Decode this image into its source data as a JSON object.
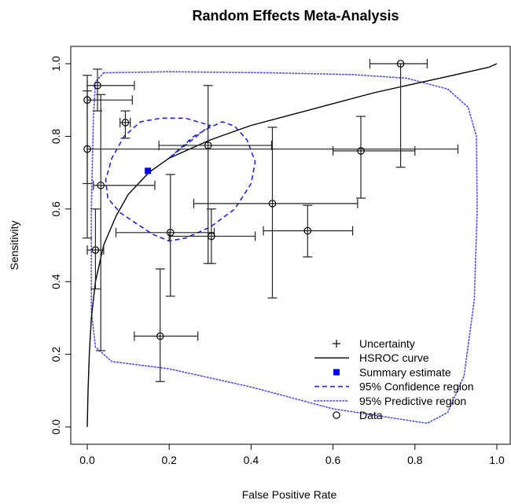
{
  "chart_data": {
    "type": "scatter",
    "title": "Random Effects Meta-Analysis",
    "xlabel": "False Positive Rate",
    "ylabel": "Sensitivity",
    "xlim": [
      0,
      1
    ],
    "ylim": [
      0,
      1
    ],
    "xticks": [
      "0.0",
      "0.2",
      "0.4",
      "0.6",
      "0.8",
      "1.0"
    ],
    "yticks": [
      "0.0",
      "0.2",
      "0.4",
      "0.6",
      "0.8",
      "1.0"
    ],
    "legend_position": "bottom-right",
    "colors": {
      "data": "#000000",
      "hsroc": "#000000",
      "summary": "#0000ff",
      "confidence": "#2222ee",
      "predictive": "#4a4aff"
    },
    "legend": [
      {
        "key": "uncertainty",
        "label": "Uncertainty"
      },
      {
        "key": "hsroc",
        "label": "HSROC curve"
      },
      {
        "key": "summary",
        "label": "Summary estimate"
      },
      {
        "key": "confidence",
        "label": "95% Confidence region"
      },
      {
        "key": "predictive",
        "label": "95% Predictive region"
      },
      {
        "key": "data",
        "label": "Data"
      }
    ],
    "summary_estimate": {
      "x": 0.148,
      "y": 0.705
    },
    "studies": [
      {
        "x": 0.765,
        "y": 1.0,
        "x_ci": [
          0.69,
          0.83
        ],
        "y_ci": [
          0.715,
          1.0
        ]
      },
      {
        "x": 0.025,
        "y": 0.94,
        "x_ci": [
          0.0,
          0.115
        ],
        "y_ci": [
          0.87,
          0.985
        ]
      },
      {
        "x": 0.0,
        "y": 0.9,
        "x_ci": [
          0.0,
          0.11
        ],
        "y_ci": [
          0.52,
          0.968
        ]
      },
      {
        "x": 0.093,
        "y": 0.838,
        "x_ci": [
          0.08,
          0.105
        ],
        "y_ci": [
          0.795,
          0.87
        ]
      },
      {
        "x": 0.0,
        "y": 0.765,
        "x_ci": [
          0.0,
          0.905
        ],
        "y_ci": [
          0.67,
          0.925
        ]
      },
      {
        "x": 0.295,
        "y": 0.775,
        "x_ci": [
          0.175,
          0.45
        ],
        "y_ci": [
          0.45,
          0.94
        ]
      },
      {
        "x": 0.668,
        "y": 0.76,
        "x_ci": [
          0.6,
          0.8
        ],
        "y_ci": [
          0.63,
          0.855
        ]
      },
      {
        "x": 0.033,
        "y": 0.665,
        "x_ci": [
          0.015,
          0.165
        ],
        "y_ci": [
          0.21,
          0.915
        ]
      },
      {
        "x": 0.452,
        "y": 0.615,
        "x_ci": [
          0.26,
          0.66
        ],
        "y_ci": [
          0.355,
          0.825
        ]
      },
      {
        "x": 0.538,
        "y": 0.54,
        "x_ci": [
          0.43,
          0.648
        ],
        "y_ci": [
          0.468,
          0.61
        ]
      },
      {
        "x": 0.203,
        "y": 0.535,
        "x_ci": [
          0.07,
          0.31
        ],
        "y_ci": [
          0.36,
          0.695
        ]
      },
      {
        "x": 0.303,
        "y": 0.525,
        "x_ci": [
          0.2,
          0.41
        ],
        "y_ci": [
          0.45,
          0.6
        ]
      },
      {
        "x": 0.02,
        "y": 0.487,
        "x_ci": [
          0.0,
          0.04
        ],
        "y_ci": [
          0.38,
          0.6
        ]
      },
      {
        "x": 0.178,
        "y": 0.25,
        "x_ci": [
          0.115,
          0.27
        ],
        "y_ci": [
          0.125,
          0.435
        ]
      }
    ],
    "hsroc_curve": [
      [
        0.0,
        0.0
      ],
      [
        0.002,
        0.1
      ],
      [
        0.005,
        0.2
      ],
      [
        0.01,
        0.3
      ],
      [
        0.02,
        0.4
      ],
      [
        0.04,
        0.5
      ],
      [
        0.07,
        0.58
      ],
      [
        0.1,
        0.64
      ],
      [
        0.15,
        0.7
      ],
      [
        0.2,
        0.74
      ],
      [
        0.3,
        0.79
      ],
      [
        0.4,
        0.83
      ],
      [
        0.5,
        0.86
      ],
      [
        0.6,
        0.89
      ],
      [
        0.7,
        0.92
      ],
      [
        0.8,
        0.945
      ],
      [
        0.9,
        0.97
      ],
      [
        0.98,
        0.99
      ],
      [
        1.0,
        1.0
      ]
    ],
    "confidence_region": [
      [
        0.148,
        0.705
      ],
      [
        0.2,
        0.74
      ],
      [
        0.26,
        0.8
      ],
      [
        0.3,
        0.825
      ],
      [
        0.33,
        0.84
      ],
      [
        0.36,
        0.828
      ],
      [
        0.39,
        0.79
      ],
      [
        0.41,
        0.73
      ],
      [
        0.4,
        0.67
      ],
      [
        0.36,
        0.6
      ],
      [
        0.3,
        0.55
      ],
      [
        0.24,
        0.52
      ],
      [
        0.2,
        0.512
      ],
      [
        0.16,
        0.53
      ],
      [
        0.12,
        0.56
      ],
      [
        0.08,
        0.59
      ],
      [
        0.05,
        0.63
      ],
      [
        0.045,
        0.68
      ],
      [
        0.06,
        0.74
      ],
      [
        0.09,
        0.8
      ],
      [
        0.13,
        0.84
      ],
      [
        0.18,
        0.85
      ],
      [
        0.24,
        0.85
      ],
      [
        0.3,
        0.83
      ]
    ],
    "predictive_region": [
      [
        0.04,
        0.975
      ],
      [
        0.2,
        0.978
      ],
      [
        0.45,
        0.975
      ],
      [
        0.65,
        0.97
      ],
      [
        0.78,
        0.96
      ],
      [
        0.88,
        0.93
      ],
      [
        0.93,
        0.88
      ],
      [
        0.95,
        0.8
      ],
      [
        0.952,
        0.6
      ],
      [
        0.945,
        0.35
      ],
      [
        0.92,
        0.14
      ],
      [
        0.88,
        0.04
      ],
      [
        0.83,
        0.01
      ],
      [
        0.6,
        0.05
      ],
      [
        0.4,
        0.11
      ],
      [
        0.2,
        0.16
      ],
      [
        0.06,
        0.18
      ],
      [
        0.02,
        0.22
      ],
      [
        0.01,
        0.32
      ],
      [
        0.01,
        0.6
      ],
      [
        0.015,
        0.85
      ],
      [
        0.02,
        0.95
      ],
      [
        0.04,
        0.975
      ]
    ]
  }
}
